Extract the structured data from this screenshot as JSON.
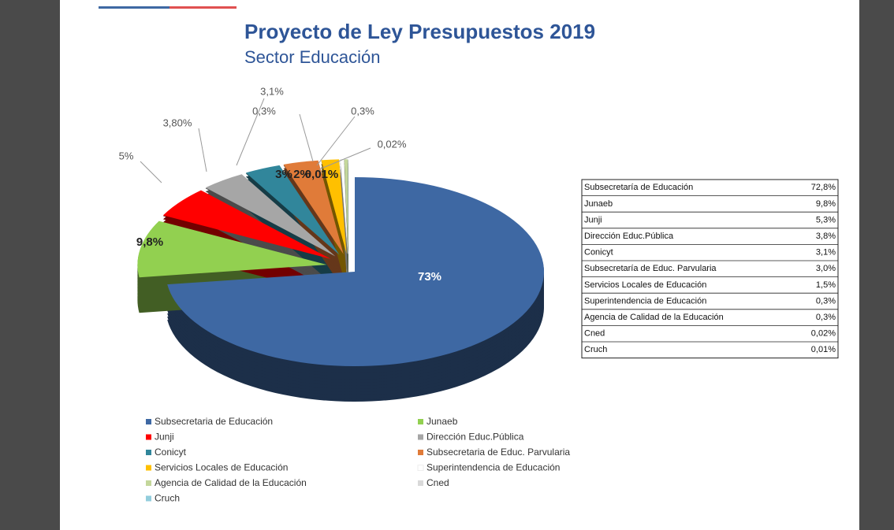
{
  "chart_data": {
    "type": "pie",
    "title": "Proyecto de Ley Presupuestos 2019",
    "subtitle": "Sector Educación",
    "categories": [
      "Subsecretaria de Educación",
      "Junaeb",
      "Junji",
      "Dirección Educ.Pública",
      "Conicyt",
      "Subsecretaria de Educ. Parvularia",
      "Servicios Locales de Educación",
      "Superintendencia de Educación",
      "Agencia de Calidad de la Educación",
      "Cned",
      "Cruch"
    ],
    "values": [
      72.8,
      9.8,
      5.3,
      3.8,
      3.1,
      3.0,
      1.5,
      0.3,
      0.3,
      0.02,
      0.01
    ],
    "value_labels": [
      "73%",
      "9,8%",
      "5%",
      "3,80%",
      "3,1%",
      "3%",
      "2%",
      "0,3%",
      "0,3%",
      "0,02%",
      "0,01%"
    ],
    "colors": [
      "#3e68a3",
      "#92d050",
      "#ff0000",
      "#a6a6a6",
      "#31869b",
      "#e07b39",
      "#ffc000",
      "#ffffff",
      "#c4d79b",
      "#d9d9d9",
      "#92cddc"
    ],
    "legend": "bottom"
  },
  "table": {
    "rows": [
      [
        "Subsecretaría de Educación",
        "72,8%"
      ],
      [
        "Junaeb",
        "9,8%"
      ],
      [
        "Junji",
        "5,3%"
      ],
      [
        "Dirección Educ.Pública",
        "3,8%"
      ],
      [
        "Conicyt",
        "3,1%"
      ],
      [
        "Subsecretaría de Educ. Parvularia",
        "3,0%"
      ],
      [
        "Servicios Locales de Educación",
        "1,5%"
      ],
      [
        "Superintendencia de Educación",
        "0,3%"
      ],
      [
        "Agencia de Calidad de la Educación",
        "0,3%"
      ],
      [
        "Cned",
        "0,02%"
      ],
      [
        "Cruch",
        "0,01%"
      ]
    ]
  }
}
